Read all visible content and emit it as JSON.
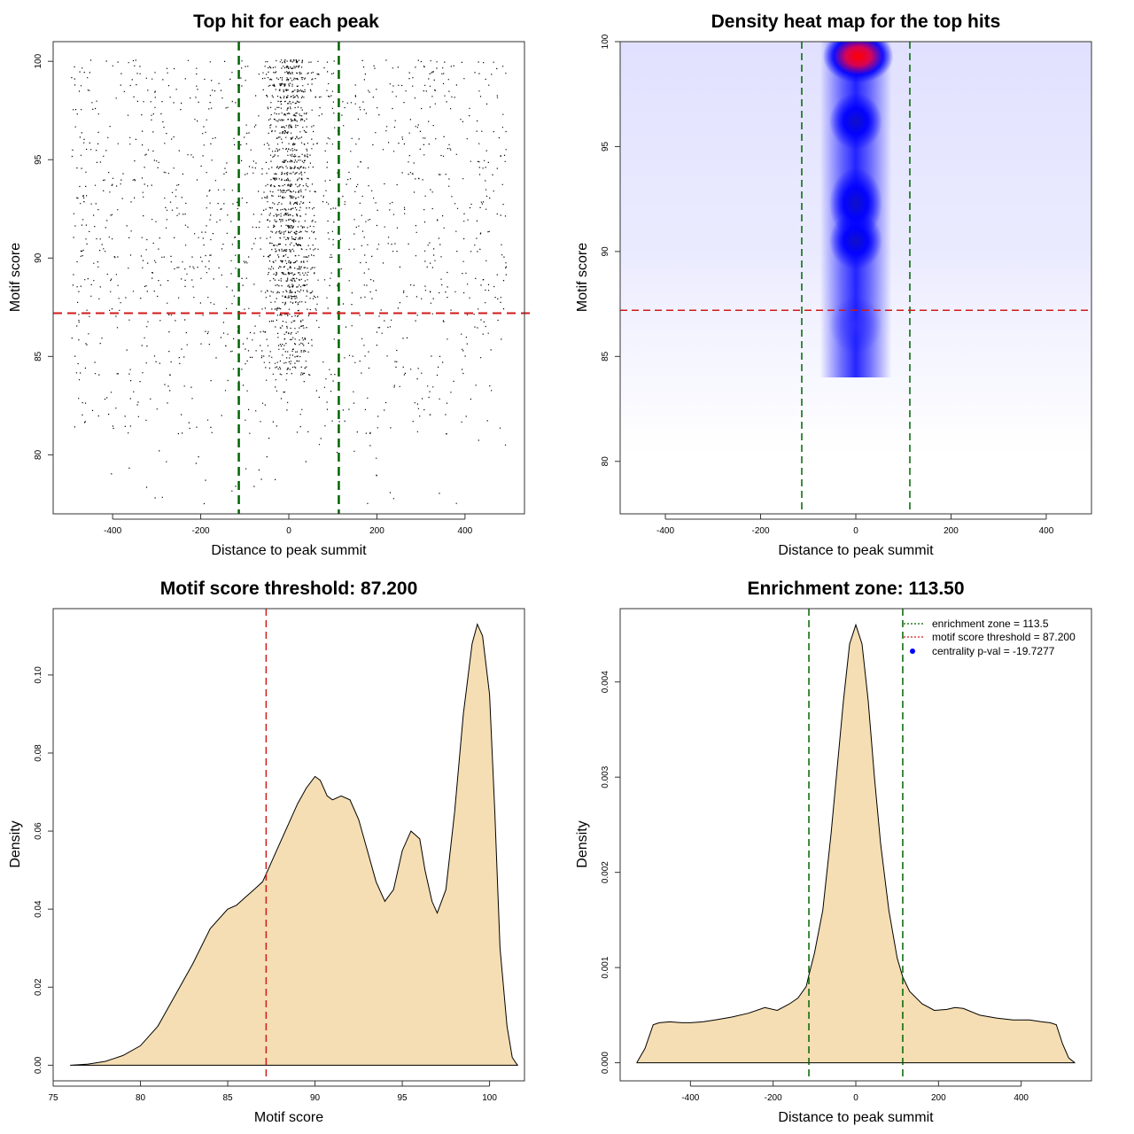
{
  "colors": {
    "points": "#000000",
    "enrichment_line": "#006400",
    "threshold_line": "#d11a1a",
    "density_fill": "#f5deb3",
    "heat_low": "#ffffff",
    "heat_mid": "#0000ff",
    "heat_high": "#ff0000",
    "pval_dot": "#0000ff"
  },
  "chart_data": [
    {
      "id": "scatter",
      "type": "scatter",
      "title": "Top hit for each peak",
      "xlabel": "Distance to peak summit",
      "ylabel": "Motif score",
      "xlim": [
        -535,
        535
      ],
      "ylim": [
        77,
        101
      ],
      "xticks": [
        -400,
        -200,
        0,
        200,
        400
      ],
      "yticks": [
        80,
        85,
        90,
        95,
        100
      ],
      "x_range_points": [
        -500,
        500
      ],
      "enrichment_zone": 113.5,
      "threshold": 87.2,
      "description_levels": "discrete motif score levels 77-100, densest near x=0 and scores 88-96"
    },
    {
      "id": "heatmap",
      "type": "heatmap",
      "title": "Density heat map for the top hits",
      "xlabel": "Distance to peak summit",
      "ylabel": "Motif score",
      "xlim": [
        -495,
        495
      ],
      "ylim": [
        77.5,
        100
      ],
      "xticks": [
        -400,
        -200,
        0,
        200,
        400
      ],
      "yticks": [
        80,
        85,
        90,
        95,
        100
      ],
      "enrichment_zone": 113.5,
      "threshold": 87.2,
      "hotspots": [
        {
          "x": 5,
          "y": 99.3,
          "intensity": 1.0
        },
        {
          "x": 0,
          "y": 96.2,
          "intensity": 0.75
        },
        {
          "x": 0,
          "y": 92.3,
          "intensity": 0.72
        },
        {
          "x": 0,
          "y": 90.5,
          "intensity": 0.65
        },
        {
          "x": 0,
          "y": 86.5,
          "intensity": 0.25
        }
      ]
    },
    {
      "id": "score-density",
      "type": "area",
      "title": "Motif score threshold: 87.200",
      "xlabel": "Motif score",
      "ylabel": "Density",
      "xlim": [
        75,
        102
      ],
      "ylim": [
        -0.004,
        0.117
      ],
      "xticks": [
        75,
        80,
        85,
        90,
        95,
        100
      ],
      "yticks": [
        0.0,
        0.02,
        0.04,
        0.06,
        0.08,
        0.1
      ],
      "ytick_labels": [
        "0.00",
        "0.02",
        "0.04",
        "0.06",
        "0.08",
        "0.10"
      ],
      "threshold": 87.2,
      "x": [
        76,
        77,
        78,
        79,
        80,
        81,
        82,
        83,
        84,
        85,
        85.5,
        86,
        86.5,
        87,
        87.2,
        87.5,
        88,
        88.5,
        89,
        89.5,
        90,
        90.3,
        90.7,
        91,
        91.5,
        92,
        92.5,
        93,
        93.5,
        94,
        94.5,
        95,
        95.5,
        96,
        96.3,
        96.7,
        97,
        97.5,
        98,
        98.5,
        99,
        99.3,
        99.6,
        100,
        100.3,
        100.6,
        101,
        101.3,
        101.6
      ],
      "y": [
        0.0,
        0.0003,
        0.001,
        0.0025,
        0.005,
        0.01,
        0.018,
        0.026,
        0.035,
        0.04,
        0.041,
        0.043,
        0.045,
        0.047,
        0.049,
        0.052,
        0.057,
        0.062,
        0.067,
        0.071,
        0.074,
        0.073,
        0.069,
        0.068,
        0.069,
        0.068,
        0.063,
        0.055,
        0.047,
        0.042,
        0.045,
        0.055,
        0.06,
        0.058,
        0.05,
        0.042,
        0.039,
        0.045,
        0.065,
        0.09,
        0.108,
        0.113,
        0.11,
        0.095,
        0.065,
        0.03,
        0.01,
        0.002,
        0.0
      ]
    },
    {
      "id": "distance-density",
      "type": "area",
      "title": "Enrichment zone: 113.50",
      "xlabel": "Distance to peak summit",
      "ylabel": "Density",
      "xlim": [
        -570,
        570
      ],
      "ylim": [
        -0.00019,
        0.00477
      ],
      "xticks": [
        -400,
        -200,
        0,
        200,
        400
      ],
      "yticks": [
        0.0,
        0.001,
        0.002,
        0.003,
        0.004
      ],
      "ytick_labels": [
        "0.000",
        "0.001",
        "0.002",
        "0.003",
        "0.004"
      ],
      "enrichment_zone": 113.5,
      "x": [
        -530,
        -510,
        -490,
        -475,
        -450,
        -420,
        -400,
        -370,
        -340,
        -300,
        -260,
        -220,
        -190,
        -160,
        -140,
        -120,
        -113.5,
        -100,
        -80,
        -60,
        -45,
        -30,
        -15,
        0,
        15,
        30,
        45,
        60,
        80,
        100,
        113.5,
        130,
        160,
        190,
        220,
        240,
        260,
        300,
        340,
        380,
        420,
        450,
        470,
        485,
        500,
        515,
        530
      ],
      "y": [
        0.0,
        0.00015,
        0.0004,
        0.00042,
        0.00043,
        0.00042,
        0.00042,
        0.00043,
        0.00045,
        0.00048,
        0.00052,
        0.00058,
        0.00055,
        0.00062,
        0.00068,
        0.0008,
        0.00092,
        0.00115,
        0.0016,
        0.0024,
        0.0031,
        0.0038,
        0.0044,
        0.0046,
        0.0044,
        0.0038,
        0.003,
        0.0023,
        0.0016,
        0.0011,
        0.0009,
        0.00075,
        0.00062,
        0.00055,
        0.00056,
        0.00058,
        0.00057,
        0.0005,
        0.00047,
        0.00045,
        0.00045,
        0.00043,
        0.00042,
        0.0004,
        0.0002,
        5e-05,
        0.0
      ],
      "legend": [
        {
          "label": "enrichment zone = 113.5",
          "style": "dotted",
          "color": "#006400"
        },
        {
          "label": "motif score threshold = 87.200",
          "style": "dotted",
          "color": "#d11a1a"
        },
        {
          "label": "centrality p-val = -19.7277",
          "style": "dot",
          "color": "#0000ff"
        }
      ]
    }
  ]
}
